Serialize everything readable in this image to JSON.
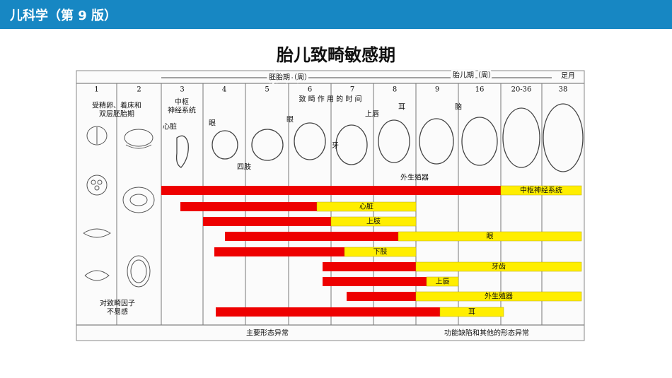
{
  "header": {
    "title": "儿科学（第 9 版）"
  },
  "title": "胎儿致畸敏感期",
  "diagram": {
    "periods": {
      "embryo": "胚胎期（周）",
      "fetus": "胎儿期（周）",
      "term": "足月"
    },
    "weeks": [
      "1",
      "2",
      "3",
      "4",
      "5",
      "6",
      "7",
      "8",
      "9",
      "16",
      "20-36",
      "38"
    ],
    "early_stage": [
      "受精卵、着床和",
      "双层胚胎期"
    ],
    "cns_note": [
      "中枢",
      "神经系统"
    ],
    "timing_note": "致 畸 作 用 的 时 间",
    "organ_labels": [
      "心脏",
      "眼",
      "四肢",
      "眼",
      "牙",
      "上唇",
      "耳",
      "脑",
      "外生殖器"
    ],
    "bars": [
      {
        "label": "中枢神经系统"
      },
      {
        "label": "心脏"
      },
      {
        "label": "上肢"
      },
      {
        "label": "眼"
      },
      {
        "label": "下肢"
      },
      {
        "label": "牙齿"
      },
      {
        "label": "上唇"
      },
      {
        "label": "外生殖器"
      },
      {
        "label": "耳"
      }
    ],
    "insensitive": [
      "对致畸因子",
      "不易感"
    ],
    "bottom": {
      "major": "主要形态异常",
      "minor": "功能缺陷和其他的形态异常"
    }
  }
}
